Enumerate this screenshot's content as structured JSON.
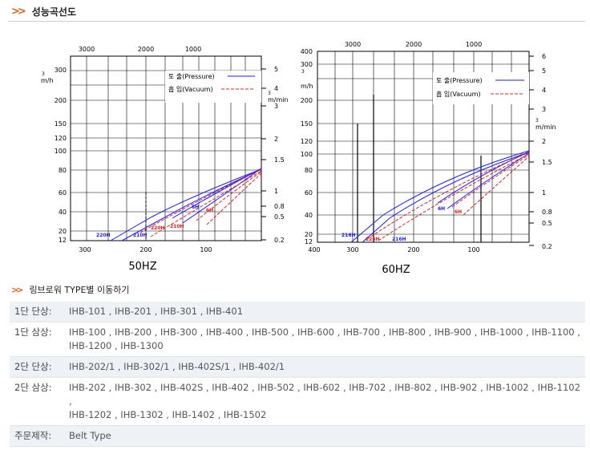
{
  "header": {
    "title": "성능곡선도"
  },
  "charts": [
    {
      "caption": "50HZ",
      "top_ticks": [
        "3000",
        "2000",
        "1000"
      ],
      "left_ticks": [
        "300",
        "200",
        "150",
        "120",
        "100",
        "80",
        "60",
        "40",
        "20",
        "12"
      ],
      "left_unit": "m/h",
      "left_unit_sup": "3",
      "right_ticks": [
        "5",
        "4",
        "3",
        "2",
        "1.5",
        "1",
        "0.8",
        "0.5",
        "0.2"
      ],
      "right_unit": "m/min",
      "right_unit_sup": "3",
      "bottom_ticks": [
        "300",
        "200",
        "100"
      ],
      "legend": {
        "pressure": "토 출(Pressure)",
        "vacuum": "흡 입(Vacuum)"
      },
      "curve_labels": [
        "220H",
        "210H",
        "220H",
        "210H",
        "6H",
        "6H"
      ]
    },
    {
      "caption": "60HZ",
      "top_ticks": [
        "3000",
        "2000",
        "1000"
      ],
      "left_ticks": [
        "400",
        "300",
        "200",
        "150",
        "120",
        "100",
        "80",
        "60",
        "40",
        "20",
        "12"
      ],
      "left_unit": "m/h",
      "left_unit_sup": "3",
      "right_ticks": [
        "6",
        "5",
        "4",
        "3",
        "2",
        "1.5",
        "1",
        "0.8",
        "0.5",
        "0.2"
      ],
      "right_unit": "m/min",
      "right_unit_sup": "3",
      "bottom_ticks": [
        "400",
        "300",
        "200",
        "100"
      ],
      "legend": {
        "pressure": "토 출(Pressure)",
        "vacuum": "흡 입(Vacuum)"
      },
      "curve_labels": [
        "216H",
        "226H",
        "216H",
        "6H",
        "6H"
      ]
    }
  ],
  "colors": {
    "pressure": "#1a1aff",
    "vacuum": "#e02020",
    "accent": "#e0641a"
  },
  "types_section": {
    "title": "링브로워 TYPE별 이동하기"
  },
  "types": [
    {
      "label": "1단 단상:",
      "models": "IHB-101 , IHB-201 , IHB-301 , IHB-401"
    },
    {
      "label": "1단 삼상:",
      "models": "IHB-100 , IHB-200 , IHB-300 , IHB-400 , IHB-500 , IHB-600 , IHB-700 , IHB-800 , IHB-900 , IHB-1000 , IHB-1100 ,",
      "models2": "IHB-1200 , IHB-1300"
    },
    {
      "label": "2단 단상:",
      "models": "IHB-202/1 , IHB-302/1 , IHB-402S/1 , IHB-402/1"
    },
    {
      "label": "2단 삼상:",
      "models": "IHB-202 , IHB-302 , IHB-402S , IHB-402 , IHB-502 , IHB-602 , IHB-702 , IHB-802 , IHB-902 , IHB-1002 , IHB-1102 ,",
      "models2": "IHB-1202 , IHB-1302 , IHB-1402 , IHB-1502"
    },
    {
      "label": "주문제작:",
      "models": "Belt Type"
    }
  ]
}
